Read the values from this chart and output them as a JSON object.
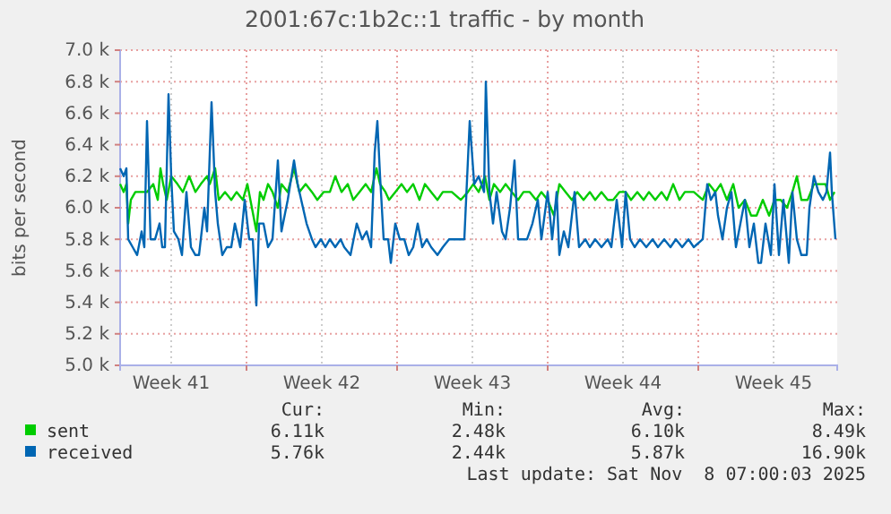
{
  "chart_data": {
    "type": "line",
    "title": "2001:67c:1b2c::1 traffic - by month",
    "ylabel": "bits per second",
    "xlim": [
      "2025-10-07T03:00",
      "2025-11-09T11:00"
    ],
    "xticks": [
      {
        "value": "2025-10-09T12:00",
        "label": "Week 41"
      },
      {
        "value": "2025-10-13T00:00",
        "label": null
      },
      {
        "value": "2025-10-16T12:00",
        "label": "Week 42"
      },
      {
        "value": "2025-10-20T00:00",
        "label": null
      },
      {
        "value": "2025-10-23T12:00",
        "label": "Week 43"
      },
      {
        "value": "2025-10-27T00:00",
        "label": null
      },
      {
        "value": "2025-10-30T12:00",
        "label": "Week 44"
      },
      {
        "value": "2025-11-03T00:00",
        "label": null
      },
      {
        "value": "2025-11-06T12:00",
        "label": "Week 45"
      }
    ],
    "ylim": [
      5000,
      7000
    ],
    "yticks": [
      {
        "value": 5000,
        "label": "5.0 k"
      },
      {
        "value": 5200,
        "label": "5.2 k"
      },
      {
        "value": 5400,
        "label": "5.4 k"
      },
      {
        "value": 5600,
        "label": "5.6 k"
      },
      {
        "value": 5800,
        "label": "5.8 k"
      },
      {
        "value": 6000,
        "label": "6.0 k"
      },
      {
        "value": 6200,
        "label": "6.2 k"
      },
      {
        "value": 6400,
        "label": "6.4 k"
      },
      {
        "value": 6600,
        "label": "6.6 k"
      },
      {
        "value": 6800,
        "label": "6.8 k"
      },
      {
        "value": 7000,
        "label": "7.0 k"
      }
    ],
    "grid": true,
    "legend": "bottom",
    "marker": "none",
    "line_style": "solid",
    "series": [
      {
        "name": "sent",
        "color": "#00cc00",
        "x": [
          "2025-10-07T03:00",
          "2025-10-07T07:00",
          "2025-10-07T10:00",
          "2025-10-07T12:00",
          "2025-10-07T15:00",
          "2025-10-07T20:00",
          "2025-10-08T03:00",
          "2025-10-08T09:00",
          "2025-10-08T16:00",
          "2025-10-08T21:00",
          "2025-10-09T00:00",
          "2025-10-09T03:00",
          "2025-10-09T07:00",
          "2025-10-09T12:00",
          "2025-10-09T19:00",
          "2025-10-10T01:00",
          "2025-10-10T08:00",
          "2025-10-10T15:00",
          "2025-10-10T21:00",
          "2025-10-11T04:00",
          "2025-10-11T07:00",
          "2025-10-11T13:00",
          "2025-10-11T17:00",
          "2025-10-12T00:00",
          "2025-10-12T07:00",
          "2025-10-12T13:00",
          "2025-10-12T20:00",
          "2025-10-13T01:00",
          "2025-10-13T06:00",
          "2025-10-13T11:00",
          "2025-10-13T15:00",
          "2025-10-13T19:00",
          "2025-10-14T00:00",
          "2025-10-14T05:00",
          "2025-10-14T11:00",
          "2025-10-14T15:00",
          "2025-10-14T22:00",
          "2025-10-15T05:00",
          "2025-10-15T11:00",
          "2025-10-15T18:00",
          "2025-10-16T01:00",
          "2025-10-16T07:00",
          "2025-10-16T14:00",
          "2025-10-16T21:00",
          "2025-10-17T03:00",
          "2025-10-17T10:00",
          "2025-10-17T17:00",
          "2025-10-17T23:00",
          "2025-10-18T06:00",
          "2025-10-18T13:00",
          "2025-10-18T19:00",
          "2025-10-19T01:00",
          "2025-10-19T05:00",
          "2025-10-19T11:00",
          "2025-10-19T15:00",
          "2025-10-19T22:00",
          "2025-10-20T05:00",
          "2025-10-20T11:00",
          "2025-10-20T18:00",
          "2025-10-21T01:00",
          "2025-10-21T07:00",
          "2025-10-21T14:00",
          "2025-10-21T21:00",
          "2025-10-22T03:00",
          "2025-10-22T13:00",
          "2025-10-22T23:00",
          "2025-10-23T07:00",
          "2025-10-23T13:00",
          "2025-10-23T19:00",
          "2025-10-24T02:00",
          "2025-10-24T07:00",
          "2025-10-24T12:00",
          "2025-10-24T19:00",
          "2025-10-25T01:00",
          "2025-10-25T08:00",
          "2025-10-25T15:00",
          "2025-10-25T21:00",
          "2025-10-26T04:00",
          "2025-10-26T11:00",
          "2025-10-26T17:00",
          "2025-10-27T00:00",
          "2025-10-27T07:00",
          "2025-10-27T13:00",
          "2025-10-27T20:00",
          "2025-10-28T03:00",
          "2025-10-28T09:00",
          "2025-10-28T16:00",
          "2025-10-28T23:00",
          "2025-10-29T05:00",
          "2025-10-29T12:00",
          "2025-10-29T19:00",
          "2025-10-30T01:00",
          "2025-10-30T08:00",
          "2025-10-30T15:00",
          "2025-10-30T21:00",
          "2025-10-31T04:00",
          "2025-10-31T11:00",
          "2025-10-31T17:00",
          "2025-11-01T00:00",
          "2025-11-01T07:00",
          "2025-11-01T13:00",
          "2025-11-01T20:00",
          "2025-11-02T03:00",
          "2025-11-02T09:00",
          "2025-11-02T19:00",
          "2025-11-03T05:00",
          "2025-11-03T12:00",
          "2025-11-03T19:00",
          "2025-11-04T01:00",
          "2025-11-04T08:00",
          "2025-11-04T15:00",
          "2025-11-04T21:00",
          "2025-11-05T04:00",
          "2025-11-05T11:00",
          "2025-11-05T17:00",
          "2025-11-06T00:00",
          "2025-11-06T07:00",
          "2025-11-06T13:00",
          "2025-11-06T20:00",
          "2025-11-07T03:00",
          "2025-11-07T09:00",
          "2025-11-07T14:00",
          "2025-11-07T19:00",
          "2025-11-08T02:00",
          "2025-11-08T09:00",
          "2025-11-08T15:00",
          "2025-11-08T22:00",
          "2025-11-09T03:00",
          "2025-11-09T08:00"
        ],
        "values": [
          6150,
          6100,
          6150,
          5900,
          6050,
          6100,
          6100,
          6100,
          6150,
          6050,
          6250,
          6150,
          6050,
          6200,
          6150,
          6100,
          6200,
          6100,
          6150,
          6200,
          6150,
          6250,
          6050,
          6100,
          6050,
          6100,
          6050,
          6150,
          6000,
          5850,
          6100,
          6050,
          6150,
          6100,
          6000,
          6150,
          6100,
          6250,
          6100,
          6150,
          6100,
          6050,
          6100,
          6100,
          6200,
          6100,
          6150,
          6050,
          6100,
          6150,
          6100,
          6250,
          6150,
          6100,
          6050,
          6100,
          6150,
          6100,
          6150,
          6050,
          6150,
          6100,
          6050,
          6100,
          6100,
          6050,
          6100,
          6150,
          6100,
          6200,
          6050,
          6150,
          6100,
          6150,
          6100,
          6050,
          6100,
          6100,
          6050,
          6100,
          6050,
          5950,
          6150,
          6100,
          6050,
          6100,
          6050,
          6100,
          6050,
          6100,
          6050,
          6050,
          6100,
          6100,
          6050,
          6100,
          6050,
          6100,
          6050,
          6100,
          6050,
          6150,
          6050,
          6100,
          6100,
          6050,
          6150,
          6100,
          6150,
          6050,
          6150,
          6000,
          6050,
          5950,
          5950,
          6050,
          5950,
          6050,
          6050,
          6000,
          6100,
          6200,
          6050,
          6050,
          6150,
          6150,
          6150,
          6050,
          6100
        ]
      },
      {
        "name": "received",
        "color": "#0066b3",
        "x": [
          "2025-10-07T03:00",
          "2025-10-07T07:00",
          "2025-10-07T10:00",
          "2025-10-07T12:00",
          "2025-10-07T17:00",
          "2025-10-07T22:00",
          "2025-10-08T03:00",
          "2025-10-08T06:00",
          "2025-10-08T09:00",
          "2025-10-08T13:00",
          "2025-10-08T18:00",
          "2025-10-08T23:00",
          "2025-10-09T02:00",
          "2025-10-09T05:00",
          "2025-10-09T09:00",
          "2025-10-09T12:00",
          "2025-10-09T15:00",
          "2025-10-09T20:00",
          "2025-10-10T00:00",
          "2025-10-10T05:00",
          "2025-10-10T10:00",
          "2025-10-10T15:00",
          "2025-10-10T19:00",
          "2025-10-11T01:00",
          "2025-10-11T04:00",
          "2025-10-11T09:00",
          "2025-10-11T13:00",
          "2025-10-11T16:00",
          "2025-10-11T21:00",
          "2025-10-12T02:00",
          "2025-10-12T07:00",
          "2025-10-12T11:00",
          "2025-10-12T17:00",
          "2025-10-12T22:00",
          "2025-10-13T03:00",
          "2025-10-13T07:00",
          "2025-10-13T11:00",
          "2025-10-13T14:00",
          "2025-10-13T19:00",
          "2025-10-14T00:00",
          "2025-10-14T05:00",
          "2025-10-14T11:00",
          "2025-10-14T15:00",
          "2025-10-14T22:00",
          "2025-10-15T05:00",
          "2025-10-15T09:00",
          "2025-10-15T15:00",
          "2025-10-15T19:00",
          "2025-10-16T01:00",
          "2025-10-16T05:00",
          "2025-10-16T11:00",
          "2025-10-16T16:00",
          "2025-10-16T21:00",
          "2025-10-17T03:00",
          "2025-10-17T09:00",
          "2025-10-17T13:00",
          "2025-10-17T20:00",
          "2025-10-18T03:00",
          "2025-10-18T09:00",
          "2025-10-18T14:00",
          "2025-10-18T19:00",
          "2025-10-18T23:00",
          "2025-10-19T02:00",
          "2025-10-19T05:00",
          "2025-10-19T09:00",
          "2025-10-19T14:00",
          "2025-10-19T17:00",
          "2025-10-19T22:00",
          "2025-10-20T03:00",
          "2025-10-20T08:00",
          "2025-10-20T13:00",
          "2025-10-20T18:00",
          "2025-10-20T23:00",
          "2025-10-21T04:00",
          "2025-10-21T09:00",
          "2025-10-21T14:00",
          "2025-10-21T21:00",
          "2025-10-22T03:00",
          "2025-10-22T10:00",
          "2025-10-22T20:00",
          "2025-10-23T03:00",
          "2025-10-23T09:00",
          "2025-10-23T14:00",
          "2025-10-23T19:00",
          "2025-10-24T01:00",
          "2025-10-24T03:00",
          "2025-10-24T07:00",
          "2025-10-24T11:00",
          "2025-10-24T15:00",
          "2025-10-24T21:00",
          "2025-10-25T01:00",
          "2025-10-25T06:00",
          "2025-10-25T11:00",
          "2025-10-25T15:00",
          "2025-10-25T19:00",
          "2025-10-26T01:00",
          "2025-10-26T07:00",
          "2025-10-26T13:00",
          "2025-10-26T17:00",
          "2025-10-27T00:00",
          "2025-10-27T05:00",
          "2025-10-27T10:00",
          "2025-10-27T13:00",
          "2025-10-27T18:00",
          "2025-10-27T23:00",
          "2025-10-28T06:00",
          "2025-10-28T11:00",
          "2025-10-28T18:00",
          "2025-10-28T23:00",
          "2025-10-29T05:00",
          "2025-10-29T12:00",
          "2025-10-29T19:00",
          "2025-10-29T23:00",
          "2025-10-30T05:00",
          "2025-10-30T11:00",
          "2025-10-30T15:00",
          "2025-10-30T20:00",
          "2025-10-31T01:00",
          "2025-10-31T07:00",
          "2025-10-31T14:00",
          "2025-10-31T21:00",
          "2025-11-01T03:00",
          "2025-11-01T10:00",
          "2025-11-01T17:00",
          "2025-11-01T23:00",
          "2025-11-02T06:00",
          "2025-11-02T13:00",
          "2025-11-02T19:00",
          "2025-11-03T05:00",
          "2025-11-03T10:00",
          "2025-11-03T14:00",
          "2025-11-03T19:00",
          "2025-11-03T22:00",
          "2025-11-04T03:00",
          "2025-11-04T08:00",
          "2025-11-04T13:00",
          "2025-11-04T18:00",
          "2025-11-04T23:00",
          "2025-11-05T04:00",
          "2025-11-05T09:00",
          "2025-11-05T14:00",
          "2025-11-05T19:00",
          "2025-11-05T22:00",
          "2025-11-06T03:00",
          "2025-11-06T09:00",
          "2025-11-06T13:00",
          "2025-11-06T18:00",
          "2025-11-06T23:00",
          "2025-11-07T05:00",
          "2025-11-07T09:00",
          "2025-11-07T14:00",
          "2025-11-07T19:00",
          "2025-11-08T01:00",
          "2025-11-08T04:00",
          "2025-11-08T09:00",
          "2025-11-08T14:00",
          "2025-11-08T19:00",
          "2025-11-08T23:00",
          "2025-11-09T03:00",
          "2025-11-09T05:00",
          "2025-11-09T07:00",
          "2025-11-09T09:00"
        ],
        "values": [
          6250,
          6200,
          6250,
          5800,
          5750,
          5700,
          5850,
          5750,
          6550,
          5800,
          5800,
          5900,
          5750,
          5750,
          6720,
          6200,
          5850,
          5800,
          5700,
          6100,
          5750,
          5700,
          5700,
          6000,
          5850,
          6670,
          6100,
          5900,
          5700,
          5750,
          5750,
          5900,
          5750,
          6050,
          5800,
          5800,
          5380,
          5900,
          5900,
          5750,
          5800,
          6300,
          5850,
          6050,
          6300,
          6150,
          6000,
          5900,
          5800,
          5750,
          5800,
          5750,
          5800,
          5750,
          5800,
          5750,
          5700,
          5900,
          5800,
          5850,
          5750,
          6350,
          6550,
          6200,
          5800,
          5800,
          5650,
          5900,
          5800,
          5800,
          5700,
          5750,
          5900,
          5750,
          5800,
          5750,
          5700,
          5750,
          5800,
          5800,
          5800,
          6550,
          6150,
          6200,
          6100,
          6800,
          6100,
          5900,
          6100,
          5850,
          5800,
          6000,
          6300,
          5800,
          5800,
          5800,
          5900,
          6050,
          5800,
          6100,
          5800,
          6100,
          5700,
          5850,
          5750,
          6100,
          5750,
          5800,
          5750,
          5800,
          5750,
          5800,
          5750,
          6050,
          5750,
          6100,
          5800,
          5750,
          5800,
          5750,
          5800,
          5750,
          5800,
          5750,
          5800,
          5750,
          5800,
          5750,
          5800,
          6150,
          6050,
          6100,
          5950,
          5800,
          6000,
          6100,
          5750,
          5900,
          6050,
          5750,
          5900,
          5650,
          5650,
          5900,
          5700,
          6150,
          5700,
          6050,
          5650,
          6100,
          5800,
          5700,
          5700,
          6000,
          6200,
          6100,
          6050,
          6100,
          6350,
          6100,
          5950,
          5800
        ]
      }
    ],
    "annotations": [
      "Cur:",
      "Min:",
      "Avg:",
      "Max:",
      "6.11k",
      "2.48k",
      "6.10k",
      "8.49k",
      "5.76k",
      "2.44k",
      "5.87k",
      "16.90k",
      "Last update: Sat Nov  8 07:00:03 2025"
    ]
  }
}
